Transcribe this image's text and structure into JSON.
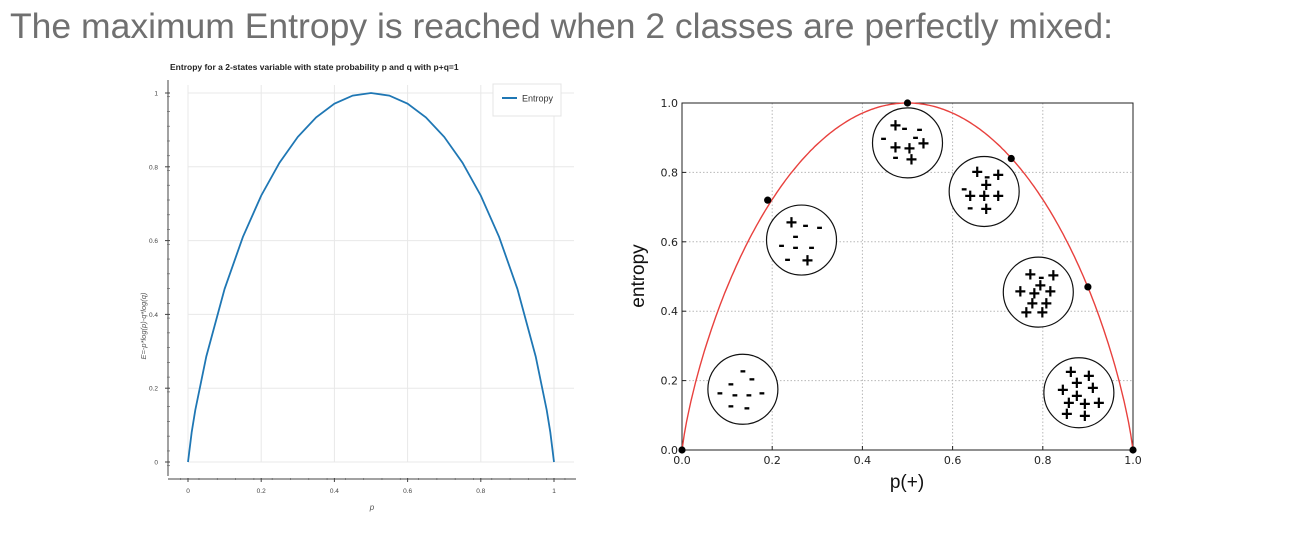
{
  "slide": {
    "title": "The maximum Entropy is reached when 2 classes are perfectly mixed:"
  },
  "chart_data": [
    {
      "type": "line",
      "title": "Entropy for a 2-states variable with state probability p and q with p+q=1",
      "xlabel": "p",
      "ylabel": "E=-p*log(p)-q*log(q)",
      "xlim": [
        0,
        1
      ],
      "ylim": [
        0,
        1
      ],
      "x_ticks": [
        "0",
        "0.2",
        "0.4",
        "0.6",
        "0.8",
        "1"
      ],
      "y_ticks": [
        "0",
        "0.2",
        "0.4",
        "0.6",
        "0.8",
        "1"
      ],
      "grid": true,
      "legend": "top-right",
      "series": [
        {
          "name": "Entropy",
          "color": "#1f77b4",
          "x": [
            0,
            0.01,
            0.02,
            0.05,
            0.1,
            0.15,
            0.2,
            0.25,
            0.3,
            0.35,
            0.4,
            0.45,
            0.5,
            0.55,
            0.6,
            0.65,
            0.7,
            0.75,
            0.8,
            0.85,
            0.9,
            0.95,
            0.98,
            0.99,
            1
          ],
          "y": [
            0,
            0.081,
            0.141,
            0.286,
            0.469,
            0.61,
            0.722,
            0.811,
            0.881,
            0.934,
            0.971,
            0.993,
            1.0,
            0.993,
            0.971,
            0.934,
            0.881,
            0.811,
            0.722,
            0.61,
            0.469,
            0.286,
            0.141,
            0.081,
            0
          ]
        }
      ]
    },
    {
      "type": "line",
      "xlabel": "p(+)",
      "ylabel": "entropy",
      "xlim": [
        0,
        1
      ],
      "ylim": [
        0,
        1
      ],
      "x_ticks": [
        "0.0",
        "0.2",
        "0.4",
        "0.6",
        "0.8",
        "1.0"
      ],
      "y_ticks": [
        "0.0",
        "0.2",
        "0.4",
        "0.6",
        "0.8",
        "1.0"
      ],
      "grid": true,
      "line_color": "#e8413e",
      "points": [
        {
          "x": 0.0,
          "y": 0.0
        },
        {
          "x": 0.19,
          "y": 0.72
        },
        {
          "x": 0.5,
          "y": 1.0
        },
        {
          "x": 0.73,
          "y": 0.84
        },
        {
          "x": 0.9,
          "y": 0.47
        },
        {
          "x": 1.0,
          "y": 0.0
        }
      ],
      "samples": [
        {
          "name": "sample-0pos",
          "plus": 0,
          "minus": 9,
          "cx": 0.135,
          "cy": 0.175,
          "signs": "minus-only"
        },
        {
          "name": "sample-2pos",
          "plus": 2,
          "minus": 6,
          "cx": 0.265,
          "cy": 0.605,
          "signs": "mostly-minus"
        },
        {
          "name": "sample-5pos",
          "plus": 5,
          "minus": 4,
          "cx": 0.5,
          "cy": 0.885,
          "signs": "mixed"
        },
        {
          "name": "sample-7pos",
          "plus": 7,
          "minus": 3,
          "cx": 0.67,
          "cy": 0.745,
          "signs": "mostly-plus"
        },
        {
          "name": "sample-9pos",
          "plus": 9,
          "minus": 1,
          "cx": 0.79,
          "cy": 0.455,
          "signs": "mostly-plus"
        },
        {
          "name": "sample-10pos",
          "plus": 10,
          "minus": 0,
          "cx": 0.88,
          "cy": 0.165,
          "signs": "plus-only"
        }
      ]
    }
  ]
}
